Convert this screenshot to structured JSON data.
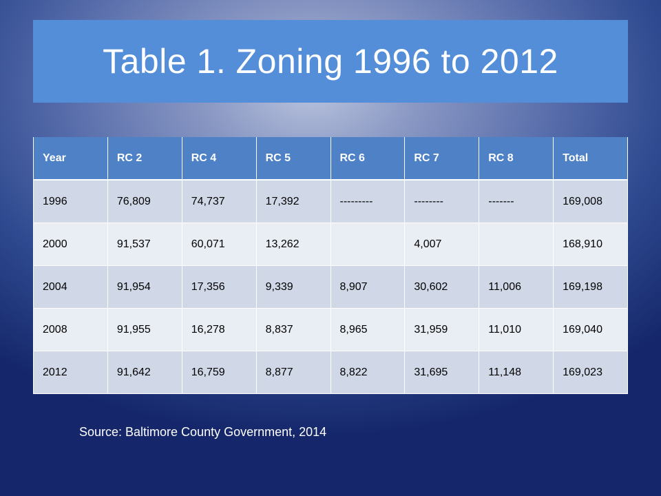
{
  "slide": {
    "title": "Table 1. Zoning 1996 to 2012",
    "source": "Source: Baltimore County Government, 2014"
  },
  "table": {
    "headers": [
      "Year",
      "RC 2",
      "RC 4",
      "RC 5",
      "RC 6",
      "RC 7",
      "RC 8",
      "Total"
    ],
    "rows": [
      [
        "1996",
        "76,809",
        "74,737",
        "17,392",
        "---------",
        "--------",
        "-------",
        "169,008"
      ],
      [
        "2000",
        "91,537",
        "60,071",
        "13,262",
        "",
        "4,007",
        "",
        "168,910"
      ],
      [
        "2004",
        "91,954",
        "17,356",
        "9,339",
        "8,907",
        "30,602",
        "11,006",
        "169,198"
      ],
      [
        "2008",
        "91,955",
        "16,278",
        "8,837",
        "8,965",
        "31,959",
        "11,010",
        "169,040"
      ],
      [
        "2012",
        "91,642",
        "16,759",
        "8,877",
        "8,822",
        "31,695",
        "11,148",
        "169,023"
      ]
    ]
  },
  "colors": {
    "title_bar": "#558ed8",
    "header_row": "#4f81c7",
    "row_dark": "#d0d8e8",
    "row_light": "#e9edf4"
  }
}
